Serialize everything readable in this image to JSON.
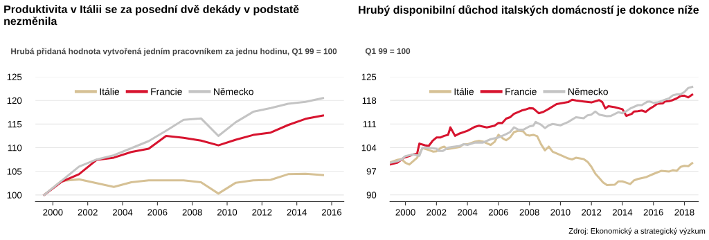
{
  "chart_data": [
    {
      "type": "line",
      "title": "Produktivita v Itálii se za posední dvě dekády v podstatě nezměnila",
      "subtitle": "Hrubá přidaná hodnota vytvořená jedním pracovníkem za jednu hodinu, Q1 99 = 100",
      "x": [
        1999.5,
        2000.5,
        2001.5,
        2002.5,
        2003.5,
        2004.5,
        2005.5,
        2006.5,
        2007.5,
        2008.5,
        2009.5,
        2010.5,
        2011.5,
        2012.5,
        2013.5,
        2014.5,
        2015.5
      ],
      "series": [
        {
          "name": "Itálie",
          "color": "#d6c195",
          "values": [
            100,
            103,
            103.3,
            102.5,
            101.7,
            102.7,
            103.1,
            103.1,
            103.1,
            102.7,
            100.3,
            102.6,
            103.1,
            103.2,
            104.4,
            104.5,
            104.2
          ]
        },
        {
          "name": "Francie",
          "color": "#d7142f",
          "values": [
            100,
            102.8,
            104.4,
            107.4,
            107.9,
            109.1,
            109.8,
            112.5,
            112.1,
            111.5,
            110.5,
            111.7,
            112.7,
            113.2,
            114.8,
            116.1,
            116.8
          ]
        },
        {
          "name": "Německo",
          "color": "#c4c4c4",
          "values": [
            100,
            103,
            106,
            107.5,
            108.4,
            109.9,
            111.4,
            113.6,
            115.9,
            116.2,
            112.5,
            115.4,
            117.6,
            118.4,
            119.3,
            119.7,
            120.5
          ]
        }
      ],
      "xlim": [
        1999,
        2016.7
      ],
      "xticks": [
        2000,
        2002,
        2004,
        2006,
        2008,
        2010,
        2012,
        2014,
        2016
      ],
      "ylim": [
        98.6,
        125
      ],
      "yticks": [
        100,
        105,
        110,
        115,
        120,
        125
      ],
      "grid": "y",
      "legend": "top"
    },
    {
      "type": "line",
      "title": "Hrubý disponibilní důchod italských domácností je dokonce níže",
      "subtitle": "Q1 99 = 100",
      "series": [
        {
          "name": "Itálie",
          "color": "#d6c195",
          "x": [
            1999.0,
            1999.5,
            1999.75,
            2000.0,
            2000.25,
            2000.75,
            2001.1,
            2001.5,
            2001.8,
            2002.0,
            2002.3,
            2002.5,
            2002.7,
            2003.0,
            2003.5,
            2003.75,
            2004.0,
            2004.5,
            2004.75,
            2005.0,
            2005.5,
            2005.75,
            2006.0,
            2006.3,
            2006.5,
            2006.75,
            2007.0,
            2007.3,
            2007.6,
            2007.8,
            2008.0,
            2008.25,
            2008.5,
            2008.75,
            2009.0,
            2009.25,
            2009.5,
            2010.0,
            2010.5,
            2010.75,
            2011.0,
            2011.5,
            2011.75,
            2012.0,
            2012.25,
            2012.5,
            2012.75,
            2013.0,
            2013.5,
            2013.75,
            2014.0,
            2014.25,
            2014.5,
            2014.75,
            2015.0,
            2015.5,
            2016.0,
            2016.5,
            2017.0,
            2017.25,
            2017.5,
            2017.75,
            2018.0,
            2018.25,
            2018.5
          ],
          "values": [
            99.6,
            100.4,
            100.6,
            99.5,
            99,
            101,
            103.9,
            103.3,
            102.8,
            102.9,
            104,
            104.3,
            103.6,
            103.8,
            104.2,
            105,
            105,
            105.8,
            106,
            105.8,
            104.8,
            105.7,
            107.8,
            106.7,
            106.2,
            107,
            108.6,
            109,
            108.8,
            107.8,
            107.6,
            107.8,
            107.4,
            105,
            103.2,
            104.3,
            102.8,
            101.8,
            100.8,
            100.5,
            101,
            100.6,
            99.8,
            98.3,
            96.3,
            95,
            93.7,
            92.9,
            93,
            94,
            94,
            93.6,
            93.2,
            94.3,
            94.7,
            95.2,
            96.2,
            97.1,
            96.9,
            97.3,
            97.1,
            98.3,
            98.6,
            98.5,
            99.4
          ]
        },
        {
          "name": "Francie",
          "color": "#d7142f",
          "x": [
            1999.0,
            1999.5,
            1999.9,
            2000.25,
            2000.5,
            2000.75,
            2000.9,
            2001.25,
            2001.5,
            2001.75,
            2002.0,
            2002.25,
            2002.5,
            2002.75,
            2002.9,
            2003.2,
            2003.5,
            2004.0,
            2004.5,
            2004.75,
            2005.25,
            2005.75,
            2006.0,
            2006.25,
            2006.5,
            2006.75,
            2007.0,
            2007.5,
            2007.75,
            2008.0,
            2008.25,
            2008.6,
            2008.9,
            2009.25,
            2009.75,
            2010.25,
            2010.5,
            2010.75,
            2011.0,
            2011.5,
            2012.0,
            2012.5,
            2012.7,
            2012.9,
            2013.1,
            2013.5,
            2014.0,
            2014.25,
            2014.6,
            2014.75,
            2015.0,
            2015.25,
            2015.5,
            2015.75,
            2016.0,
            2016.25,
            2016.6,
            2016.75,
            2017.0,
            2017.25,
            2017.5,
            2017.75,
            2018.0,
            2018.25,
            2018.5
          ],
          "values": [
            99,
            99.6,
            101,
            101.5,
            102,
            102.2,
            105.2,
            104.7,
            104.5,
            106,
            107,
            107,
            107.5,
            107.8,
            110,
            107.5,
            108.2,
            109,
            110.2,
            110.5,
            110,
            110.5,
            111.3,
            111.3,
            112.6,
            113,
            114,
            115,
            115.3,
            115.7,
            115.6,
            114.2,
            114.6,
            115.5,
            116.9,
            117.3,
            117.5,
            118.2,
            118,
            117.7,
            117.4,
            118.1,
            117.5,
            115.6,
            116.3,
            116,
            115.4,
            113.4,
            114,
            114.7,
            114.8,
            115,
            114.6,
            115.5,
            116.2,
            117,
            117.1,
            117.7,
            117.8,
            118.1,
            118.6,
            119.3,
            119.4,
            118.9,
            119.7
          ]
        },
        {
          "name": "Německo",
          "color": "#c4c4c4",
          "x": [
            1999.0,
            1999.5,
            1999.75,
            2000.0,
            2000.5,
            2000.9,
            2001.1,
            2001.5,
            2002.0,
            2002.15,
            2002.4,
            2002.75,
            2003.0,
            2003.5,
            2003.75,
            2004.0,
            2004.5,
            2005.0,
            2005.5,
            2006.0,
            2006.5,
            2006.75,
            2007.0,
            2007.3,
            2007.6,
            2008.0,
            2008.25,
            2008.4,
            2008.75,
            2009.0,
            2009.25,
            2009.5,
            2010.0,
            2010.5,
            2011.0,
            2011.5,
            2011.75,
            2012.0,
            2012.25,
            2012.5,
            2013.0,
            2013.25,
            2013.75,
            2014.0,
            2014.25,
            2014.5,
            2015.0,
            2015.25,
            2015.6,
            2015.75,
            2016.0,
            2016.25,
            2016.5,
            2017.0,
            2017.25,
            2017.5,
            2017.75,
            2018.0,
            2018.25,
            2018.5
          ],
          "values": [
            99.5,
            100,
            100.5,
            101.5,
            102,
            101.6,
            104,
            104,
            103.7,
            103,
            103,
            104,
            104.2,
            104.5,
            105,
            104.8,
            105.5,
            105.5,
            106.5,
            107,
            108,
            108.6,
            110,
            109.3,
            109.3,
            110.3,
            110.5,
            111.6,
            110.8,
            109.8,
            110.6,
            111,
            110.6,
            111.6,
            113,
            112.7,
            113.6,
            113.8,
            114.7,
            113.8,
            113.3,
            113.4,
            114.5,
            114.2,
            114.8,
            115.6,
            116.6,
            116.6,
            117.6,
            117.7,
            117.3,
            117.4,
            117.8,
            118.6,
            119.5,
            119.8,
            119.8,
            120.5,
            121.7,
            122
          ]
        }
      ],
      "xlim": [
        1999,
        2018.9
      ],
      "xticks": [
        2000,
        2002,
        2004,
        2006,
        2008,
        2010,
        2012,
        2014,
        2016,
        2018
      ],
      "ylim": [
        88,
        125
      ],
      "yticks": [
        90,
        97,
        104,
        111,
        118,
        125
      ],
      "grid": "y",
      "legend": "top",
      "annotations": [
        "Zdroj: Ekonomický a strategický výzkum"
      ]
    }
  ]
}
